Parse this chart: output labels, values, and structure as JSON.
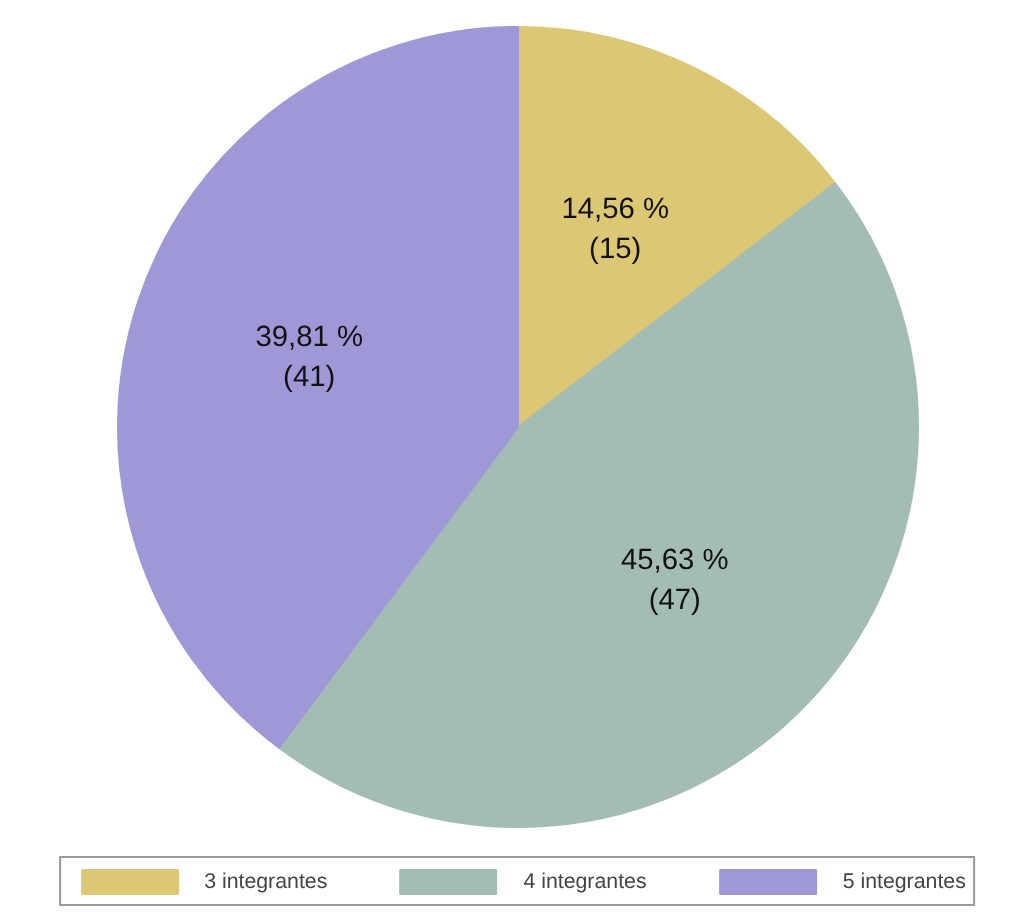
{
  "chart_data": {
    "type": "pie",
    "categories": [
      "3 integrantes",
      "4 integrantes",
      "5 integrantes"
    ],
    "values": [
      15,
      47,
      41
    ],
    "colors": [
      "#dcc774",
      "#a3bdb5",
      "#9e98d6"
    ],
    "value_labels": [
      "14,56 %\n(15)",
      "45,63 %\n(47)",
      "39,81 %\n(41)"
    ],
    "legend": "bottom"
  }
}
